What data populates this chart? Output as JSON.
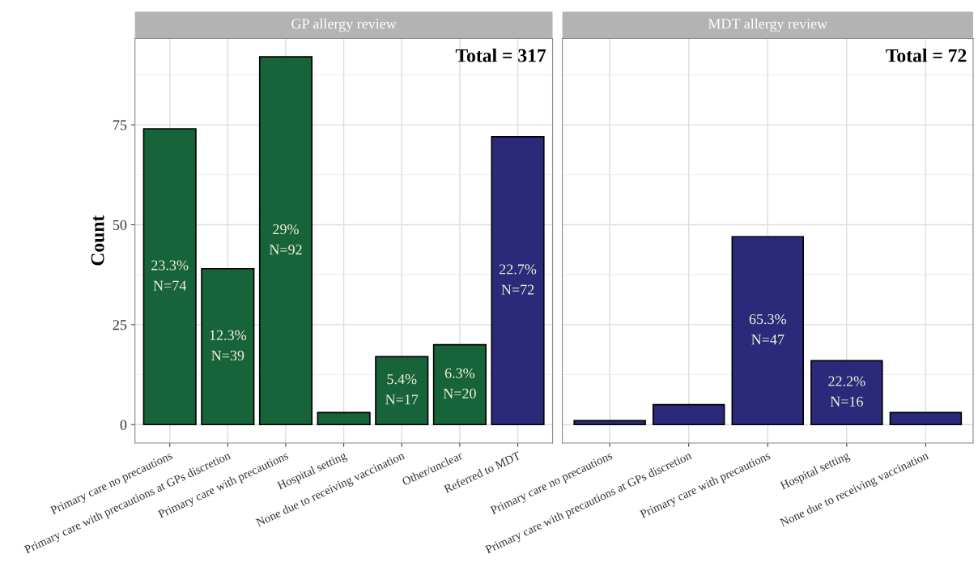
{
  "chart_data": [
    {
      "type": "bar",
      "title": "GP allergy review",
      "ylabel": "Count",
      "categories": [
        "Primary care no precautions",
        "Primary care with precautions at GPs discretion",
        "Primary care with precautions",
        "Hospital setting",
        "None due to receiving vaccination",
        "Other/unclear",
        "Referred to MDT"
      ],
      "values": [
        74,
        39,
        92,
        3,
        17,
        20,
        72
      ],
      "colors": [
        "#17633a",
        "#17633a",
        "#17633a",
        "#17633a",
        "#17633a",
        "#17633a",
        "#2b2a7a"
      ],
      "value_labels": [
        "23.3%\nN=74",
        "12.3%\nN=39",
        "29%\nN=92",
        null,
        "5.4%\nN=17",
        "6.3%\nN=20",
        "22.7%\nN=72"
      ],
      "annotations": [
        "Total = 317"
      ],
      "ylim": [
        -4.6,
        96.6
      ],
      "yticks": [
        0,
        25,
        50,
        75
      ],
      "grid": true
    },
    {
      "type": "bar",
      "title": "MDT allergy review",
      "categories": [
        "Primary care no precautions",
        "Primary care with precautions at GPs discretion",
        "Primary care with precautions",
        "Hospital setting",
        "None due to receiving vaccination"
      ],
      "values": [
        1,
        5,
        47,
        16,
        3
      ],
      "colors": [
        "#2b2a7a",
        "#2b2a7a",
        "#2b2a7a",
        "#2b2a7a",
        "#2b2a7a"
      ],
      "value_labels": [
        null,
        null,
        "65.3%\nN=47",
        "22.2%\nN=16",
        null
      ],
      "annotations": [
        "Total = 72"
      ],
      "ylim": [
        -4.6,
        96.6
      ],
      "yticks": [
        0,
        25,
        50,
        75
      ],
      "grid": true,
      "tick_labels": "x"
    }
  ]
}
